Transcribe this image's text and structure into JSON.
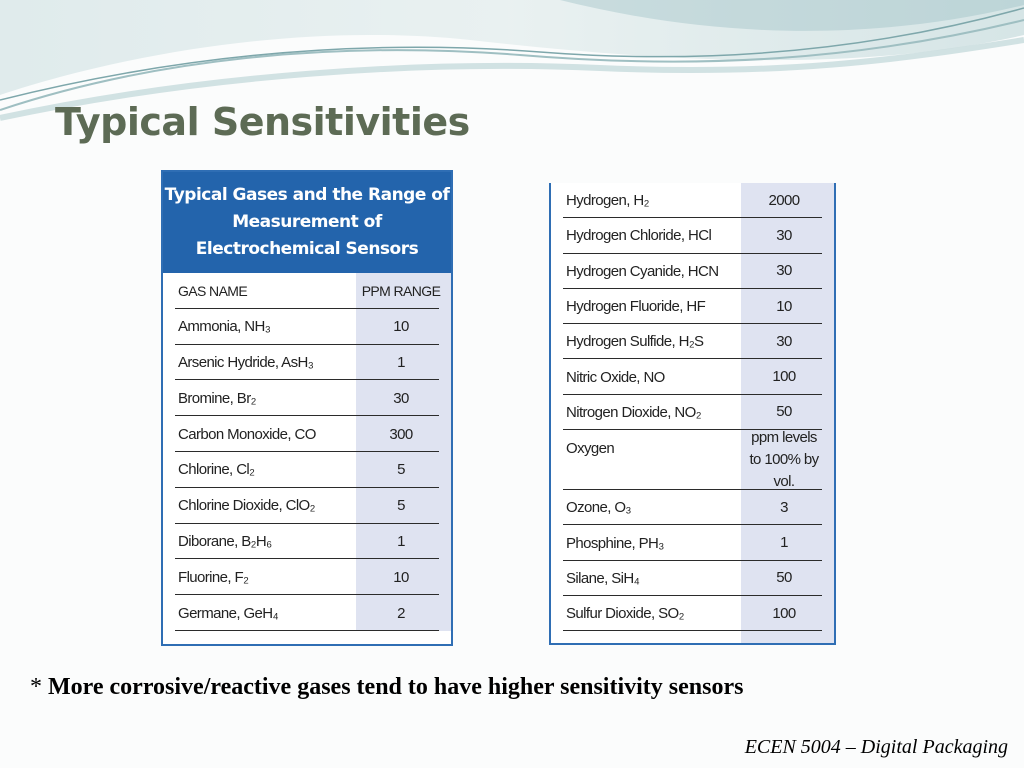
{
  "slide": {
    "title": "Typical Sensitivities",
    "footnote_marker": "*",
    "footnote_text": "More corrosive/reactive gases tend to have higher sensitivity sensors",
    "footer": "ECEN 5004 – Digital Packaging"
  },
  "left_table": {
    "header": "Typical Gases and the Range of Measurement of Electrochemical Sensors",
    "col_gas": "GAS NAME",
    "col_ppm": "PPM RANGE",
    "rows": [
      {
        "gas": "Ammonia, NH₃",
        "ppm": "10"
      },
      {
        "gas": "Arsenic Hydride, AsH₃",
        "ppm": "1"
      },
      {
        "gas": "Bromine, Br₂",
        "ppm": "30"
      },
      {
        "gas": "Carbon Monoxide, CO",
        "ppm": "300"
      },
      {
        "gas": "Chlorine, Cl₂",
        "ppm": "5"
      },
      {
        "gas": "Chlorine Dioxide, ClO₂",
        "ppm": "5"
      },
      {
        "gas": "Diborane, B₂H₆",
        "ppm": "1"
      },
      {
        "gas": "Fluorine, F₂",
        "ppm": "10"
      },
      {
        "gas": "Germane, GeH₄",
        "ppm": "2"
      }
    ]
  },
  "right_table": {
    "rows": [
      {
        "gas": "Hydrogen, H₂",
        "ppm": "2000"
      },
      {
        "gas": "Hydrogen Chloride, HCl",
        "ppm": "30"
      },
      {
        "gas": "Hydrogen Cyanide,  HCN",
        "ppm": "30"
      },
      {
        "gas": "Hydrogen Fluoride, HF",
        "ppm": "10"
      },
      {
        "gas": "Hydrogen   Sulfide, H₂S",
        "ppm": "30"
      },
      {
        "gas": "Nitric Oxide, NO",
        "ppm": "100"
      },
      {
        "gas": "Nitrogen Dioxide, NO₂",
        "ppm": "50"
      },
      {
        "gas": "Oxygen",
        "ppm": "ppm levels to 100% by vol."
      },
      {
        "gas": "Ozone, O₃",
        "ppm": "3"
      },
      {
        "gas": "Phosphine, PH₃",
        "ppm": "1"
      },
      {
        "gas": "Silane, SiH₄",
        "ppm": "50"
      },
      {
        "gas": "Sulfur Dioxide, SO₂",
        "ppm": "100"
      }
    ]
  },
  "colors": {
    "title": "#5d6b55",
    "table_header_bg": "#2364ac",
    "value_column_bg": "#dfe3f1",
    "swoosh_teal": "#a9c9cc"
  }
}
